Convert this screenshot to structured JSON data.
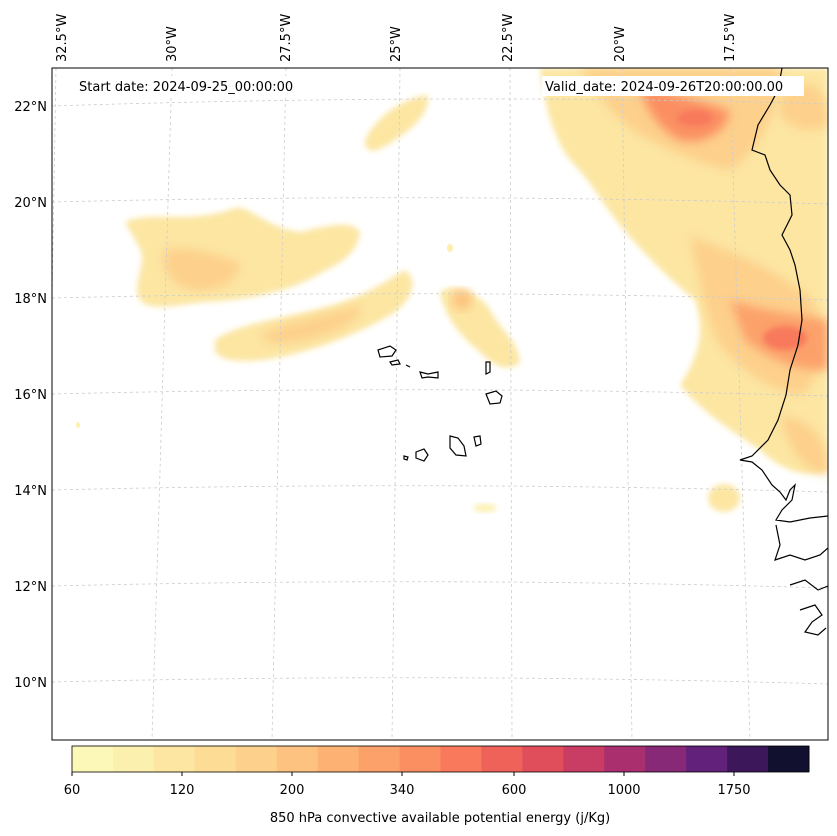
{
  "map": {
    "start_date": "Start date: 2024-09-25_00:00:00",
    "valid_date": "Valid_date: 2024-09-26T20:00:00.00",
    "lon_labels": [
      "32.5°W",
      "30°W",
      "27.5°W",
      "25°W",
      "22.5°W",
      "20°W",
      "17.5°W"
    ],
    "lat_labels": [
      "22°N",
      "20°N",
      "18°N",
      "16°N",
      "14°N",
      "12°N",
      "10°N"
    ],
    "gridlines": true
  },
  "colorbar": {
    "label": "850 hPa convective available potential energy (j/Kg)",
    "tick_labels": [
      "60",
      "120",
      "200",
      "340",
      "600",
      "1000",
      "1750"
    ],
    "colors": [
      "#fcf8b8",
      "#fcf0ae",
      "#fce6a2",
      "#fddc96",
      "#fdd08b",
      "#fdc27f",
      "#fdb274",
      "#fca16a",
      "#fb8f62",
      "#f8795c",
      "#ee6259",
      "#e04e5c",
      "#c93c64",
      "#aa2f6e",
      "#872976",
      "#62217a",
      "#3c1759",
      "#12102f"
    ]
  },
  "colors": {
    "coast": "#000000",
    "gridline": "#cccccc"
  }
}
